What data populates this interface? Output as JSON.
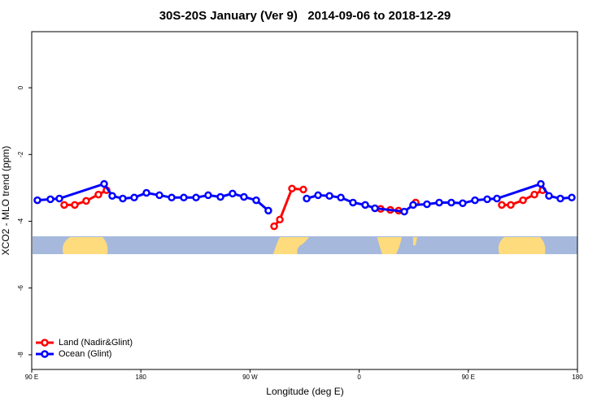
{
  "chart_data": {
    "type": "line",
    "title": "30S-20S January (Ver 9)   2014-09-06 to 2018-12-29",
    "xlabel": "Longitude (deg E)",
    "ylabel": "XCO2 - MLO trend (ppm)",
    "xlim": [
      90,
      540
    ],
    "ylim": [
      -8.44,
      1.68
    ],
    "xticks": [
      {
        "value": 90,
        "label": "90 E"
      },
      180,
      {
        "value": 270,
        "label": "90 W"
      },
      {
        "value": 360,
        "label": "0"
      },
      {
        "value": 450,
        "label": "90 E"
      },
      {
        "value": 540,
        "label": "180"
      }
    ],
    "yticks": [
      0,
      -2,
      -4,
      -6,
      -8
    ],
    "legend": "bottom-left",
    "series": [
      {
        "name": "Land (Nadir&Glint)",
        "color": "#ff0000",
        "x": [
          116.8,
          125.5,
          134.9,
          145.0,
          151.7,
          null,
          289.9,
          294.6,
          304.6,
          314.0,
          null,
          377.7,
          385.7,
          392.5,
          null,
          406.6,
          null,
          477.6,
          485.0,
          495.1,
          504.5,
          511.2
        ],
        "values": [
          -3.51,
          -3.51,
          -3.39,
          -3.2,
          -3.07,
          null,
          -4.15,
          -3.95,
          -3.02,
          -3.05,
          null,
          -3.63,
          -3.66,
          -3.68,
          null,
          -3.44,
          null,
          -3.51,
          -3.51,
          -3.37,
          -3.2,
          -3.07
        ]
      },
      {
        "name": "Ocean (Glint)",
        "color": "#0000ff",
        "x": [
          94.7,
          105.4,
          112.8,
          149.7,
          156.4,
          165.1,
          174.5,
          184.6,
          195.3,
          205.4,
          215.4,
          225.5,
          235.5,
          245.6,
          255.6,
          265.0,
          275.1,
          285.1,
          null,
          316.7,
          326.1,
          335.5,
          344.9,
          354.9,
          365.0,
          373.0,
          397.2,
          404.5,
          415.9,
          426.0,
          436.0,
          445.4,
          455.5,
          465.6,
          473.6,
          509.8,
          516.5,
          525.9,
          535.3
        ],
        "values": [
          -3.37,
          -3.34,
          -3.32,
          -2.88,
          -3.24,
          -3.32,
          -3.29,
          -3.15,
          -3.22,
          -3.29,
          -3.29,
          -3.29,
          -3.22,
          -3.27,
          -3.17,
          -3.27,
          -3.37,
          -3.68,
          null,
          -3.32,
          -3.22,
          -3.24,
          -3.29,
          -3.44,
          -3.51,
          -3.61,
          -3.71,
          -3.51,
          -3.49,
          -3.44,
          -3.44,
          -3.46,
          -3.37,
          -3.34,
          -3.32,
          -2.88,
          -3.24,
          -3.32,
          -3.29
        ]
      }
    ]
  }
}
